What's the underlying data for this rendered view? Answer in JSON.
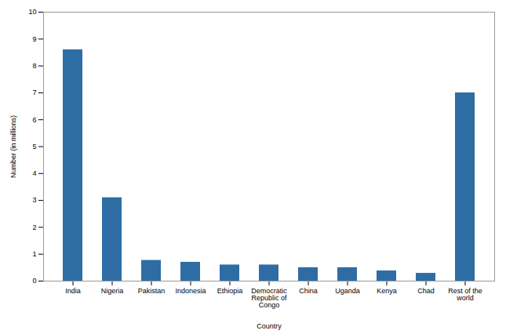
{
  "chart_data": {
    "type": "bar",
    "categories": [
      "India",
      "Nigeria",
      "Pakistan",
      "Indonesia",
      "Ethiopia",
      "Democratic\nRepublic of\nCongo",
      "China",
      "Uganda",
      "Kenya",
      "Chad",
      "Rest of the\nworld"
    ],
    "values": [
      8.6,
      3.1,
      0.77,
      0.7,
      0.6,
      0.6,
      0.5,
      0.5,
      0.38,
      0.29,
      7.0
    ],
    "color": "#2E6DA4",
    "xlabel": "Country",
    "ylabel": "Number (in millions)",
    "ylim": [
      0,
      10
    ],
    "yticks": [
      0,
      1,
      2,
      3,
      4,
      5,
      6,
      7,
      8,
      9,
      10
    ],
    "grid": false
  }
}
